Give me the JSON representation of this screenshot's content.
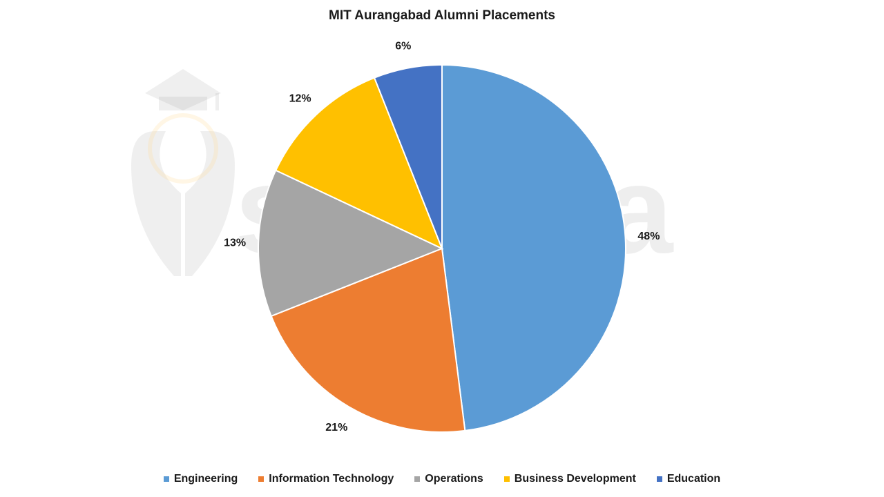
{
  "chart_data": {
    "type": "pie",
    "title": "MIT Aurangabad Alumni Placements",
    "categories": [
      "Engineering",
      "Information Technology",
      "Operations",
      "Business Development",
      "Education"
    ],
    "values": [
      48,
      21,
      13,
      12,
      6
    ],
    "value_labels": [
      "48%",
      "21%",
      "13%",
      "12%",
      "6%"
    ],
    "colors": [
      "#5B9BD5",
      "#ED7D31",
      "#A5A5A5",
      "#FFC000",
      "#4472C4"
    ],
    "legend_position": "bottom",
    "start_angle": "top",
    "direction": "clockwise"
  },
  "watermark": {
    "text": "shiksha",
    "icon": "graduation-cap-icon"
  }
}
